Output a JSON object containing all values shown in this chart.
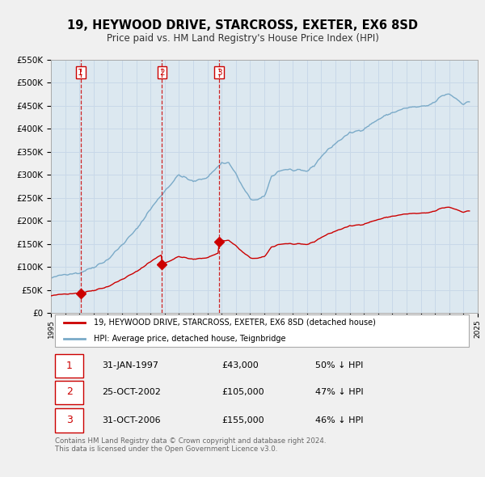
{
  "title": "19, HEYWOOD DRIVE, STARCROSS, EXETER, EX6 8SD",
  "subtitle": "Price paid vs. HM Land Registry's House Price Index (HPI)",
  "legend_label_red": "19, HEYWOOD DRIVE, STARCROSS, EXETER, EX6 8SD (detached house)",
  "legend_label_blue": "HPI: Average price, detached house, Teignbridge",
  "footer": "Contains HM Land Registry data © Crown copyright and database right 2024.\nThis data is licensed under the Open Government Licence v3.0.",
  "xlim": [
    1995,
    2025
  ],
  "ylim": [
    0,
    550000
  ],
  "yticks": [
    0,
    50000,
    100000,
    150000,
    200000,
    250000,
    300000,
    350000,
    400000,
    450000,
    500000,
    550000
  ],
  "ytick_labels": [
    "£0",
    "£50K",
    "£100K",
    "£150K",
    "£200K",
    "£250K",
    "£300K",
    "£350K",
    "£400K",
    "£450K",
    "£500K",
    "£550K"
  ],
  "xticks": [
    1995,
    1996,
    1997,
    1998,
    1999,
    2000,
    2001,
    2002,
    2003,
    2004,
    2005,
    2006,
    2007,
    2008,
    2009,
    2010,
    2011,
    2012,
    2013,
    2014,
    2015,
    2016,
    2017,
    2018,
    2019,
    2020,
    2021,
    2022,
    2023,
    2024,
    2025
  ],
  "sale_dates": [
    1997.08,
    2002.81,
    2006.83
  ],
  "sale_prices": [
    43000,
    105000,
    155000
  ],
  "sale_labels": [
    "1",
    "2",
    "3"
  ],
  "vline_color": "#cc0000",
  "sale_marker_color": "#cc0000",
  "red_line_color": "#cc0000",
  "blue_line_color": "#7aaac8",
  "grid_color": "#c8d8e8",
  "bg_color": "#e8eef4",
  "plot_bg_color": "#dce8f0",
  "table_rows": [
    {
      "num": "1",
      "date": "31-JAN-1997",
      "price": "£43,000",
      "hpi": "50% ↓ HPI"
    },
    {
      "num": "2",
      "date": "25-OCT-2002",
      "price": "£105,000",
      "hpi": "47% ↓ HPI"
    },
    {
      "num": "3",
      "date": "31-OCT-2006",
      "price": "£155,000",
      "hpi": "46% ↓ HPI"
    }
  ]
}
